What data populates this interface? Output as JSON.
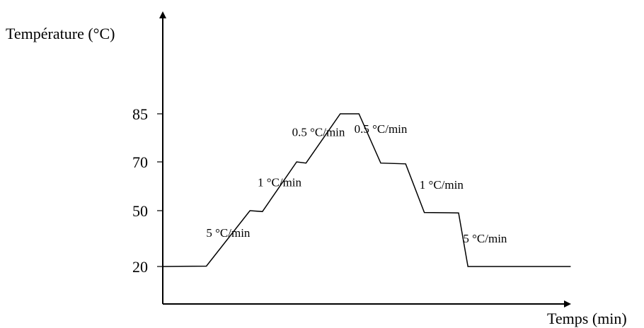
{
  "chart_data": {
    "type": "line",
    "title": "",
    "xlabel": "Temps (min)",
    "ylabel": "Température (°C)",
    "yticks": [
      20,
      50,
      70,
      85
    ],
    "ylim": [
      0,
      100
    ],
    "grid": false,
    "legend": "none",
    "colors": {
      "line": "#000000",
      "axis": "#000000"
    },
    "series": [
      {
        "x": [
          0,
          14,
          28,
          32,
          43,
          46,
          57,
          63,
          70,
          78,
          84,
          95,
          98,
          109,
          113,
          125,
          131
        ],
        "y": [
          20,
          20.2,
          50,
          49.5,
          70,
          69.5,
          85,
          85,
          69.5,
          69.2,
          49,
          48.8,
          20,
          20,
          20,
          20,
          20
        ],
        "name": ""
      }
    ],
    "annotations": [
      {
        "text": "5 °C/min",
        "x": 21,
        "y": 36
      },
      {
        "text": "1 °C/min",
        "x": 37.5,
        "y": 60
      },
      {
        "text": "0.5 °C/min",
        "x": 50,
        "y": 78
      },
      {
        "text": "0.5 °C/min",
        "x": 70,
        "y": 79
      },
      {
        "text": "1 °C/min",
        "x": 89.5,
        "y": 59
      },
      {
        "text": "5 °C/min",
        "x": 103.5,
        "y": 33
      }
    ]
  }
}
